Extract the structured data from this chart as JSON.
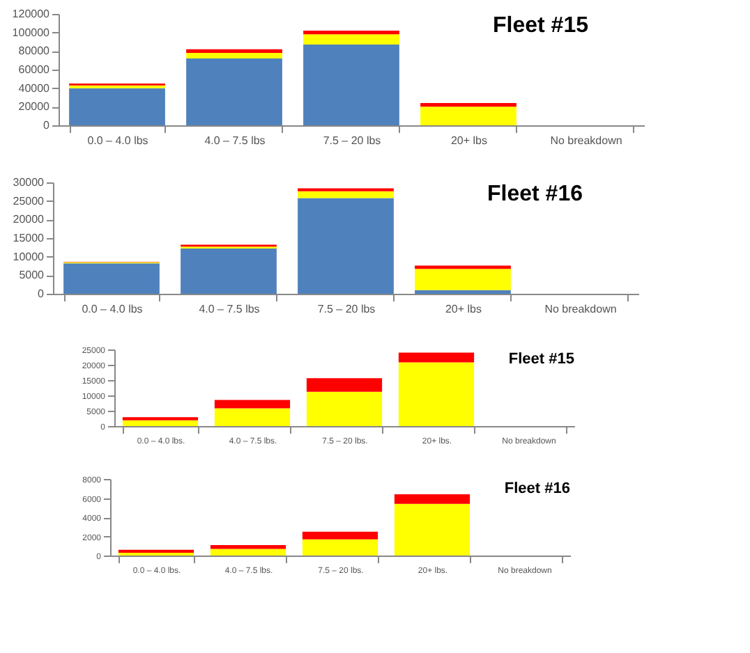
{
  "chart_data": [
    {
      "type": "bar",
      "title": "Fleet #15",
      "stacked": true,
      "grid": false,
      "legend": false,
      "categories": [
        "0.0 – 4.0 lbs",
        "4.0 – 7.5 lbs",
        "7.5 – 20 lbs",
        "20+ lbs",
        "No breakdown"
      ],
      "ylim": [
        0,
        120000
      ],
      "yticks": [
        0,
        20000,
        40000,
        60000,
        80000,
        100000,
        120000
      ],
      "series": [
        {
          "color": "#4f81bd",
          "values": [
            40000,
            72000,
            87000,
            0,
            null
          ]
        },
        {
          "color": "#ffff00",
          "values": [
            3000,
            6000,
            11000,
            20000,
            null
          ]
        },
        {
          "color": "#ff0000",
          "values": [
            2000,
            4000,
            4000,
            4000,
            null
          ]
        }
      ]
    },
    {
      "type": "bar",
      "title": "Fleet #16",
      "stacked": true,
      "grid": false,
      "legend": false,
      "categories": [
        "0.0 – 4.0 lbs",
        "4.0 – 7.5 lbs",
        "7.5 – 20 lbs",
        "20+ lbs",
        "No breakdown"
      ],
      "ylim": [
        0,
        30000
      ],
      "yticks": [
        0,
        5000,
        10000,
        15000,
        20000,
        25000,
        30000
      ],
      "series": [
        {
          "color": "#4f81bd",
          "values": [
            8200,
            12200,
            25800,
            1000,
            null
          ]
        },
        {
          "color": "#ffff00",
          "values": [
            300,
            500,
            1800,
            5700,
            null
          ]
        },
        {
          "color": "#ff0000",
          "values": [
            100,
            500,
            800,
            900,
            null
          ]
        }
      ]
    },
    {
      "type": "bar",
      "title": "Fleet #15",
      "stacked": true,
      "grid": false,
      "legend": false,
      "categories": [
        "0.0 – 4.0 lbs.",
        "4.0 – 7.5 lbs.",
        "7.5 – 20 lbs.",
        "20+ lbs.",
        "No breakdown"
      ],
      "ylim": [
        0,
        25000
      ],
      "yticks": [
        0,
        5000,
        10000,
        15000,
        20000,
        25000
      ],
      "series": [
        {
          "color": "#ffff00",
          "values": [
            1900,
            5800,
            11200,
            20800,
            null
          ]
        },
        {
          "color": "#ff0000",
          "values": [
            1000,
            2700,
            4400,
            3200,
            null
          ]
        }
      ]
    },
    {
      "type": "bar",
      "title": "Fleet #16",
      "stacked": true,
      "grid": false,
      "legend": false,
      "categories": [
        "0.0 – 4.0 lbs.",
        "4.0 – 7.5 lbs.",
        "7.5 – 20 lbs.",
        "20+ lbs.",
        "No breakdown"
      ],
      "ylim": [
        0,
        8000
      ],
      "yticks": [
        0,
        2000,
        4000,
        6000,
        8000
      ],
      "series": [
        {
          "color": "#ffff00",
          "values": [
            300,
            700,
            1700,
            5400,
            null
          ]
        },
        {
          "color": "#ff0000",
          "values": [
            300,
            400,
            800,
            1000,
            null
          ]
        }
      ]
    }
  ]
}
